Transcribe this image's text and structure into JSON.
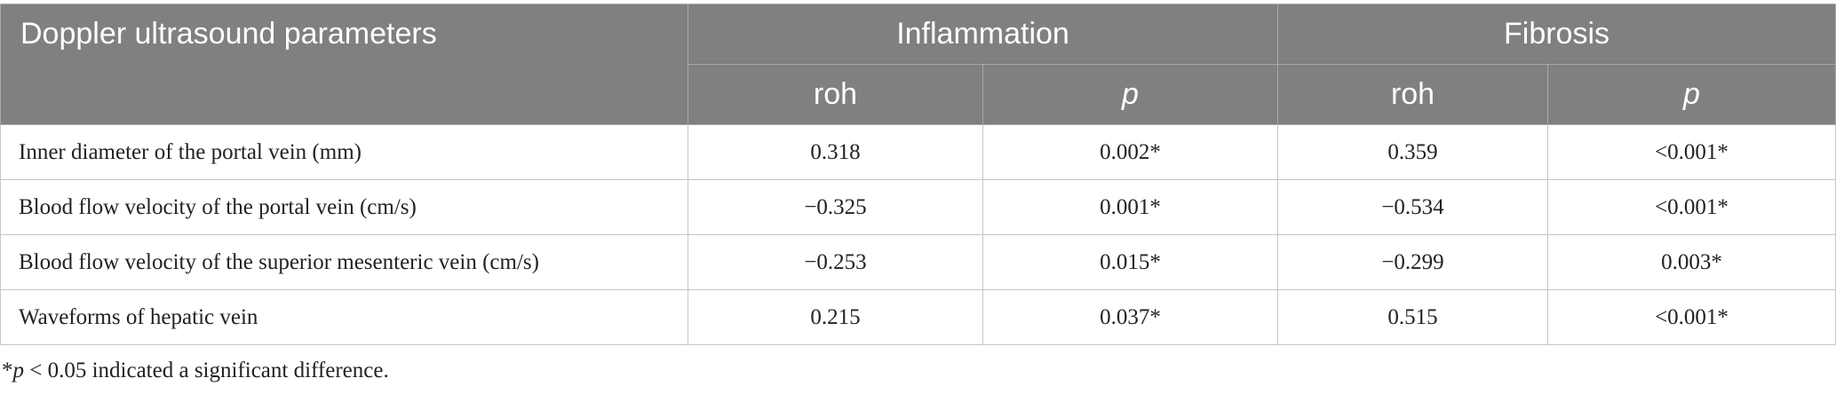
{
  "table": {
    "header": {
      "param_label": "Doppler ultrasound parameters",
      "groups": [
        "Inflammation",
        "Fibrosis"
      ],
      "subheaders": [
        "roh",
        "p",
        "roh",
        "p"
      ]
    },
    "rows": [
      {
        "label": "Inner diameter of the portal vein (mm)",
        "values": [
          "0.318",
          "0.002*",
          "0.359",
          "<0.001*"
        ]
      },
      {
        "label": "Blood flow velocity of the portal vein (cm/s)",
        "values": [
          "−0.325",
          "0.001*",
          "−0.534",
          "<0.001*"
        ]
      },
      {
        "label": "Blood flow velocity of the superior mesenteric vein (cm/s)",
        "values": [
          "−0.253",
          "0.015*",
          "−0.299",
          "0.003*"
        ]
      },
      {
        "label": "Waveforms of hepatic vein",
        "values": [
          "0.215",
          "0.037*",
          "0.515",
          "<0.001*"
        ]
      }
    ]
  },
  "footnote": {
    "star": "*",
    "p": "p",
    "text": " < 0.05 indicated a significant difference."
  }
}
